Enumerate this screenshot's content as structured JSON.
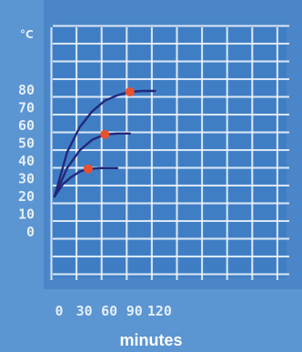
{
  "chart_data": {
    "type": "line",
    "ylabel": "°C",
    "xlabel": "minutes",
    "x_ticks": [
      "0",
      "30",
      "60",
      "90",
      "120"
    ],
    "y_ticks": [
      "0",
      "10",
      "20",
      "30",
      "40",
      "50",
      "60",
      "70",
      "80"
    ],
    "xlim": [
      0,
      150
    ],
    "ylim": [
      0,
      80
    ],
    "grid": true,
    "colors": {
      "background": "#4a86c8",
      "frame": "#5b95d2",
      "grid_cell": "#3f7ec4",
      "grid_line": "#f2f7fd",
      "curve": "#22287a",
      "marker": "#e8502f"
    },
    "series": [
      {
        "x": [
          0,
          15,
          30,
          45,
          60,
          75,
          90,
          105,
          120
        ],
        "y": [
          20,
          45,
          59,
          68,
          74,
          77,
          79,
          79.5,
          79.5
        ],
        "marker": {
          "x": 90,
          "y": 79
        }
      },
      {
        "x": [
          0,
          15,
          30,
          45,
          60,
          75,
          90
        ],
        "y": [
          20,
          36,
          46,
          52,
          55,
          55.5,
          55.5
        ],
        "marker": {
          "x": 60,
          "y": 55
        }
      },
      {
        "x": [
          0,
          10,
          20,
          30,
          40,
          55,
          75
        ],
        "y": [
          20,
          27,
          31,
          34,
          35.5,
          36,
          36
        ],
        "marker": {
          "x": 40,
          "y": 35.5
        }
      }
    ]
  }
}
